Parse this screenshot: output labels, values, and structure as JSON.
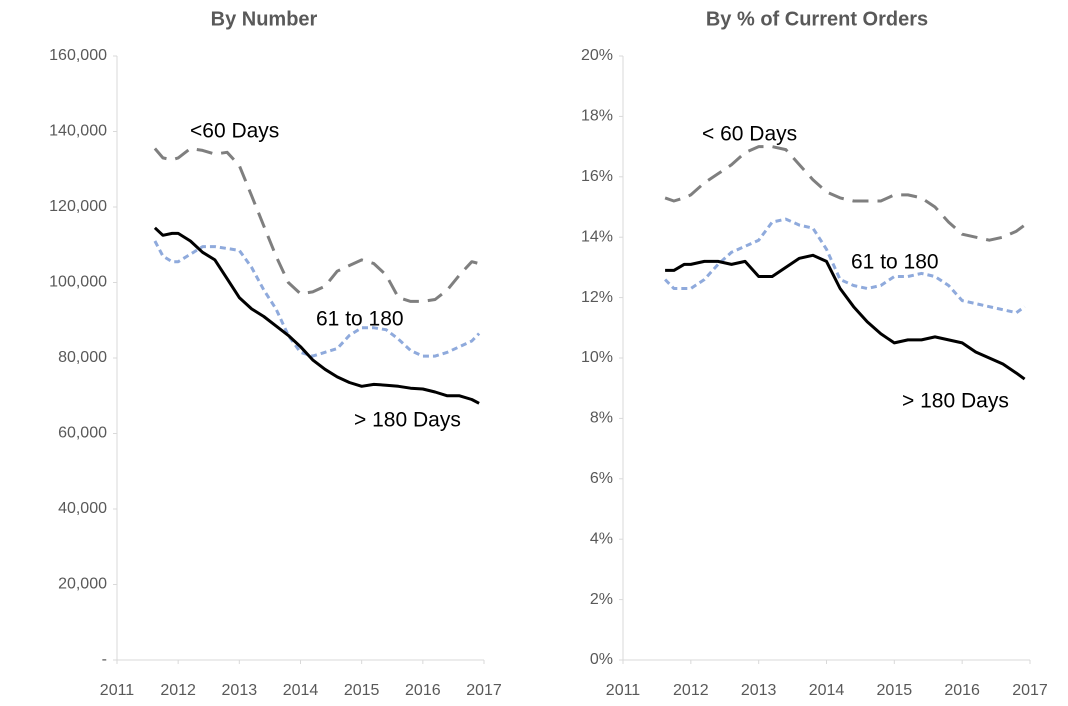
{
  "chart_data": [
    {
      "type": "line",
      "title": "By Number",
      "x": [
        2011.62,
        2011.75,
        2011.9,
        2012.0,
        2012.2,
        2012.4,
        2012.6,
        2012.8,
        2013.0,
        2013.2,
        2013.4,
        2013.6,
        2013.8,
        2014.0,
        2014.2,
        2014.4,
        2014.6,
        2014.8,
        2015.0,
        2015.2,
        2015.4,
        2015.6,
        2015.8,
        2016.0,
        2016.2,
        2016.4,
        2016.6,
        2016.8,
        2016.92
      ],
      "series": [
        {
          "name": "<60 Days",
          "color": "#7f7f7f",
          "values": [
            135500,
            133000,
            132500,
            133000,
            135500,
            135000,
            134000,
            134500,
            131000,
            123000,
            115000,
            107000,
            100000,
            97000,
            97500,
            99000,
            103000,
            104500,
            106000,
            105000,
            102000,
            96000,
            95000,
            95000,
            95500,
            98000,
            102000,
            105500,
            105000
          ]
        },
        {
          "name": "61 to 180",
          "color": "#8faadc",
          "values": [
            111000,
            107000,
            105500,
            105500,
            107500,
            109500,
            109500,
            109000,
            108500,
            104000,
            98000,
            93000,
            86000,
            81500,
            80500,
            81500,
            82500,
            86000,
            88000,
            88000,
            87500,
            85000,
            82000,
            80500,
            80500,
            81500,
            83000,
            84500,
            86500
          ]
        },
        {
          "name": "> 180 Days",
          "color": "#000000",
          "values": [
            114500,
            112500,
            113000,
            113000,
            111000,
            108000,
            106000,
            101000,
            96000,
            93000,
            91000,
            88500,
            86000,
            83000,
            79500,
            77000,
            75000,
            73500,
            72500,
            73000,
            72800,
            72500,
            72000,
            71800,
            71000,
            70000,
            70000,
            69000,
            68000
          ]
        }
      ],
      "xlim": [
        2011,
        2017
      ],
      "xticks": [
        2011,
        2012,
        2013,
        2014,
        2015,
        2016,
        2017
      ],
      "ylim": [
        0,
        160000
      ],
      "yticks": [
        {
          "value": 0,
          "label": "-"
        },
        {
          "value": 20000,
          "label": "20,000"
        },
        {
          "value": 40000,
          "label": "40,000"
        },
        {
          "value": 60000,
          "label": "60,000"
        },
        {
          "value": 80000,
          "label": "80,000"
        },
        {
          "value": 100000,
          "label": "100,000"
        },
        {
          "value": 120000,
          "label": "120,000"
        },
        {
          "value": 140000,
          "label": "140,000"
        },
        {
          "value": 160000,
          "label": "160,000"
        }
      ],
      "grid": false
    },
    {
      "type": "line",
      "title": "By % of Current Orders",
      "x": [
        2011.62,
        2011.75,
        2011.9,
        2012.0,
        2012.2,
        2012.4,
        2012.6,
        2012.8,
        2013.0,
        2013.2,
        2013.4,
        2013.6,
        2013.8,
        2014.0,
        2014.2,
        2014.4,
        2014.6,
        2014.8,
        2015.0,
        2015.2,
        2015.4,
        2015.6,
        2015.8,
        2016.0,
        2016.2,
        2016.4,
        2016.6,
        2016.8,
        2016.92
      ],
      "series": [
        {
          "name": "< 60 Days",
          "color": "#7f7f7f",
          "values": [
            15.3,
            15.2,
            15.3,
            15.4,
            15.8,
            16.1,
            16.4,
            16.8,
            17.0,
            17.0,
            16.9,
            16.4,
            15.9,
            15.5,
            15.3,
            15.2,
            15.2,
            15.2,
            15.4,
            15.4,
            15.3,
            15.0,
            14.5,
            14.1,
            14.0,
            13.9,
            14.0,
            14.2,
            14.4
          ]
        },
        {
          "name": "61 to 180",
          "color": "#8faadc",
          "values": [
            12.6,
            12.3,
            12.3,
            12.3,
            12.6,
            13.1,
            13.5,
            13.7,
            13.9,
            14.5,
            14.6,
            14.4,
            14.3,
            13.6,
            12.6,
            12.4,
            12.3,
            12.4,
            12.7,
            12.7,
            12.8,
            12.7,
            12.4,
            11.9,
            11.8,
            11.7,
            11.6,
            11.5,
            11.7
          ]
        },
        {
          "name": "> 180 Days",
          "color": "#000000",
          "values": [
            12.9,
            12.9,
            13.1,
            13.1,
            13.2,
            13.2,
            13.1,
            13.2,
            12.7,
            12.7,
            13.0,
            13.3,
            13.4,
            13.2,
            12.3,
            11.7,
            11.2,
            10.8,
            10.5,
            10.6,
            10.6,
            10.7,
            10.6,
            10.5,
            10.2,
            10.0,
            9.8,
            9.5,
            9.3
          ]
        }
      ],
      "xlim": [
        2011,
        2017
      ],
      "xticks": [
        2011,
        2012,
        2013,
        2014,
        2015,
        2016,
        2017
      ],
      "ylim": [
        0,
        20
      ],
      "yticks": [
        {
          "value": 0,
          "label": "0%"
        },
        {
          "value": 2,
          "label": "2%"
        },
        {
          "value": 4,
          "label": "4%"
        },
        {
          "value": 6,
          "label": "6%"
        },
        {
          "value": 8,
          "label": "8%"
        },
        {
          "value": 10,
          "label": "10%"
        },
        {
          "value": 12,
          "label": "12%"
        },
        {
          "value": 14,
          "label": "14%"
        },
        {
          "value": 16,
          "label": "16%"
        },
        {
          "value": 18,
          "label": "18%"
        },
        {
          "value": 20,
          "label": "20%"
        }
      ],
      "grid": false
    }
  ]
}
